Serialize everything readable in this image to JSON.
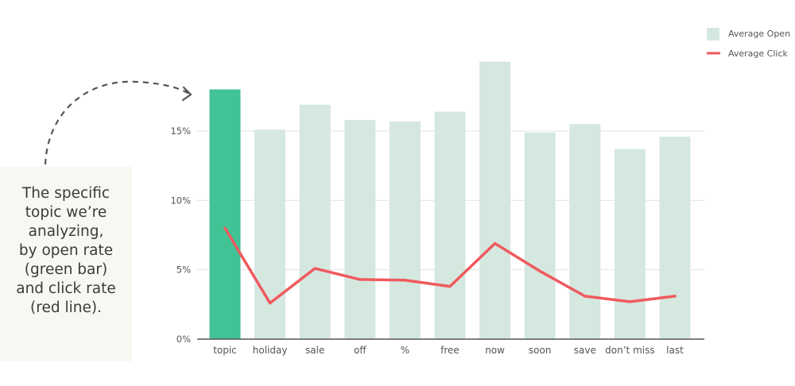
{
  "annotation": {
    "lines": [
      "The specific",
      "topic we’re",
      "analyzing,",
      "by open rate",
      "(green bar)",
      "and click rate",
      "(red line)."
    ]
  },
  "colors": {
    "highlight_bar": "#41c395",
    "bar": "#d5e8e0",
    "line": "#ef5a5e",
    "grid": "#e4e4e4",
    "axis": "#555555",
    "annotation_bg": "#f8f7f2",
    "arrow": "#555555"
  },
  "chart_data": {
    "type": "bar",
    "categories": [
      "topic",
      "holiday",
      "sale",
      "off",
      "%",
      "free",
      "now",
      "soon",
      "save",
      "don’t miss",
      "last"
    ],
    "highlight_index": 0,
    "series": [
      {
        "name": "Average Open",
        "type": "bar",
        "values": [
          18.0,
          15.1,
          16.9,
          15.8,
          15.7,
          16.4,
          20.0,
          14.9,
          15.5,
          13.7,
          14.6
        ]
      },
      {
        "name": "Average Click",
        "type": "line",
        "values": [
          8.0,
          2.6,
          5.1,
          4.3,
          4.25,
          3.8,
          6.9,
          4.9,
          3.1,
          2.7,
          3.1
        ]
      }
    ],
    "yticks": [
      "0%",
      "5%",
      "10%",
      "15%"
    ],
    "ytick_values": [
      0,
      5,
      10,
      15
    ],
    "ylim": [
      0,
      20
    ],
    "grid": true,
    "legend_position": "top-right"
  }
}
